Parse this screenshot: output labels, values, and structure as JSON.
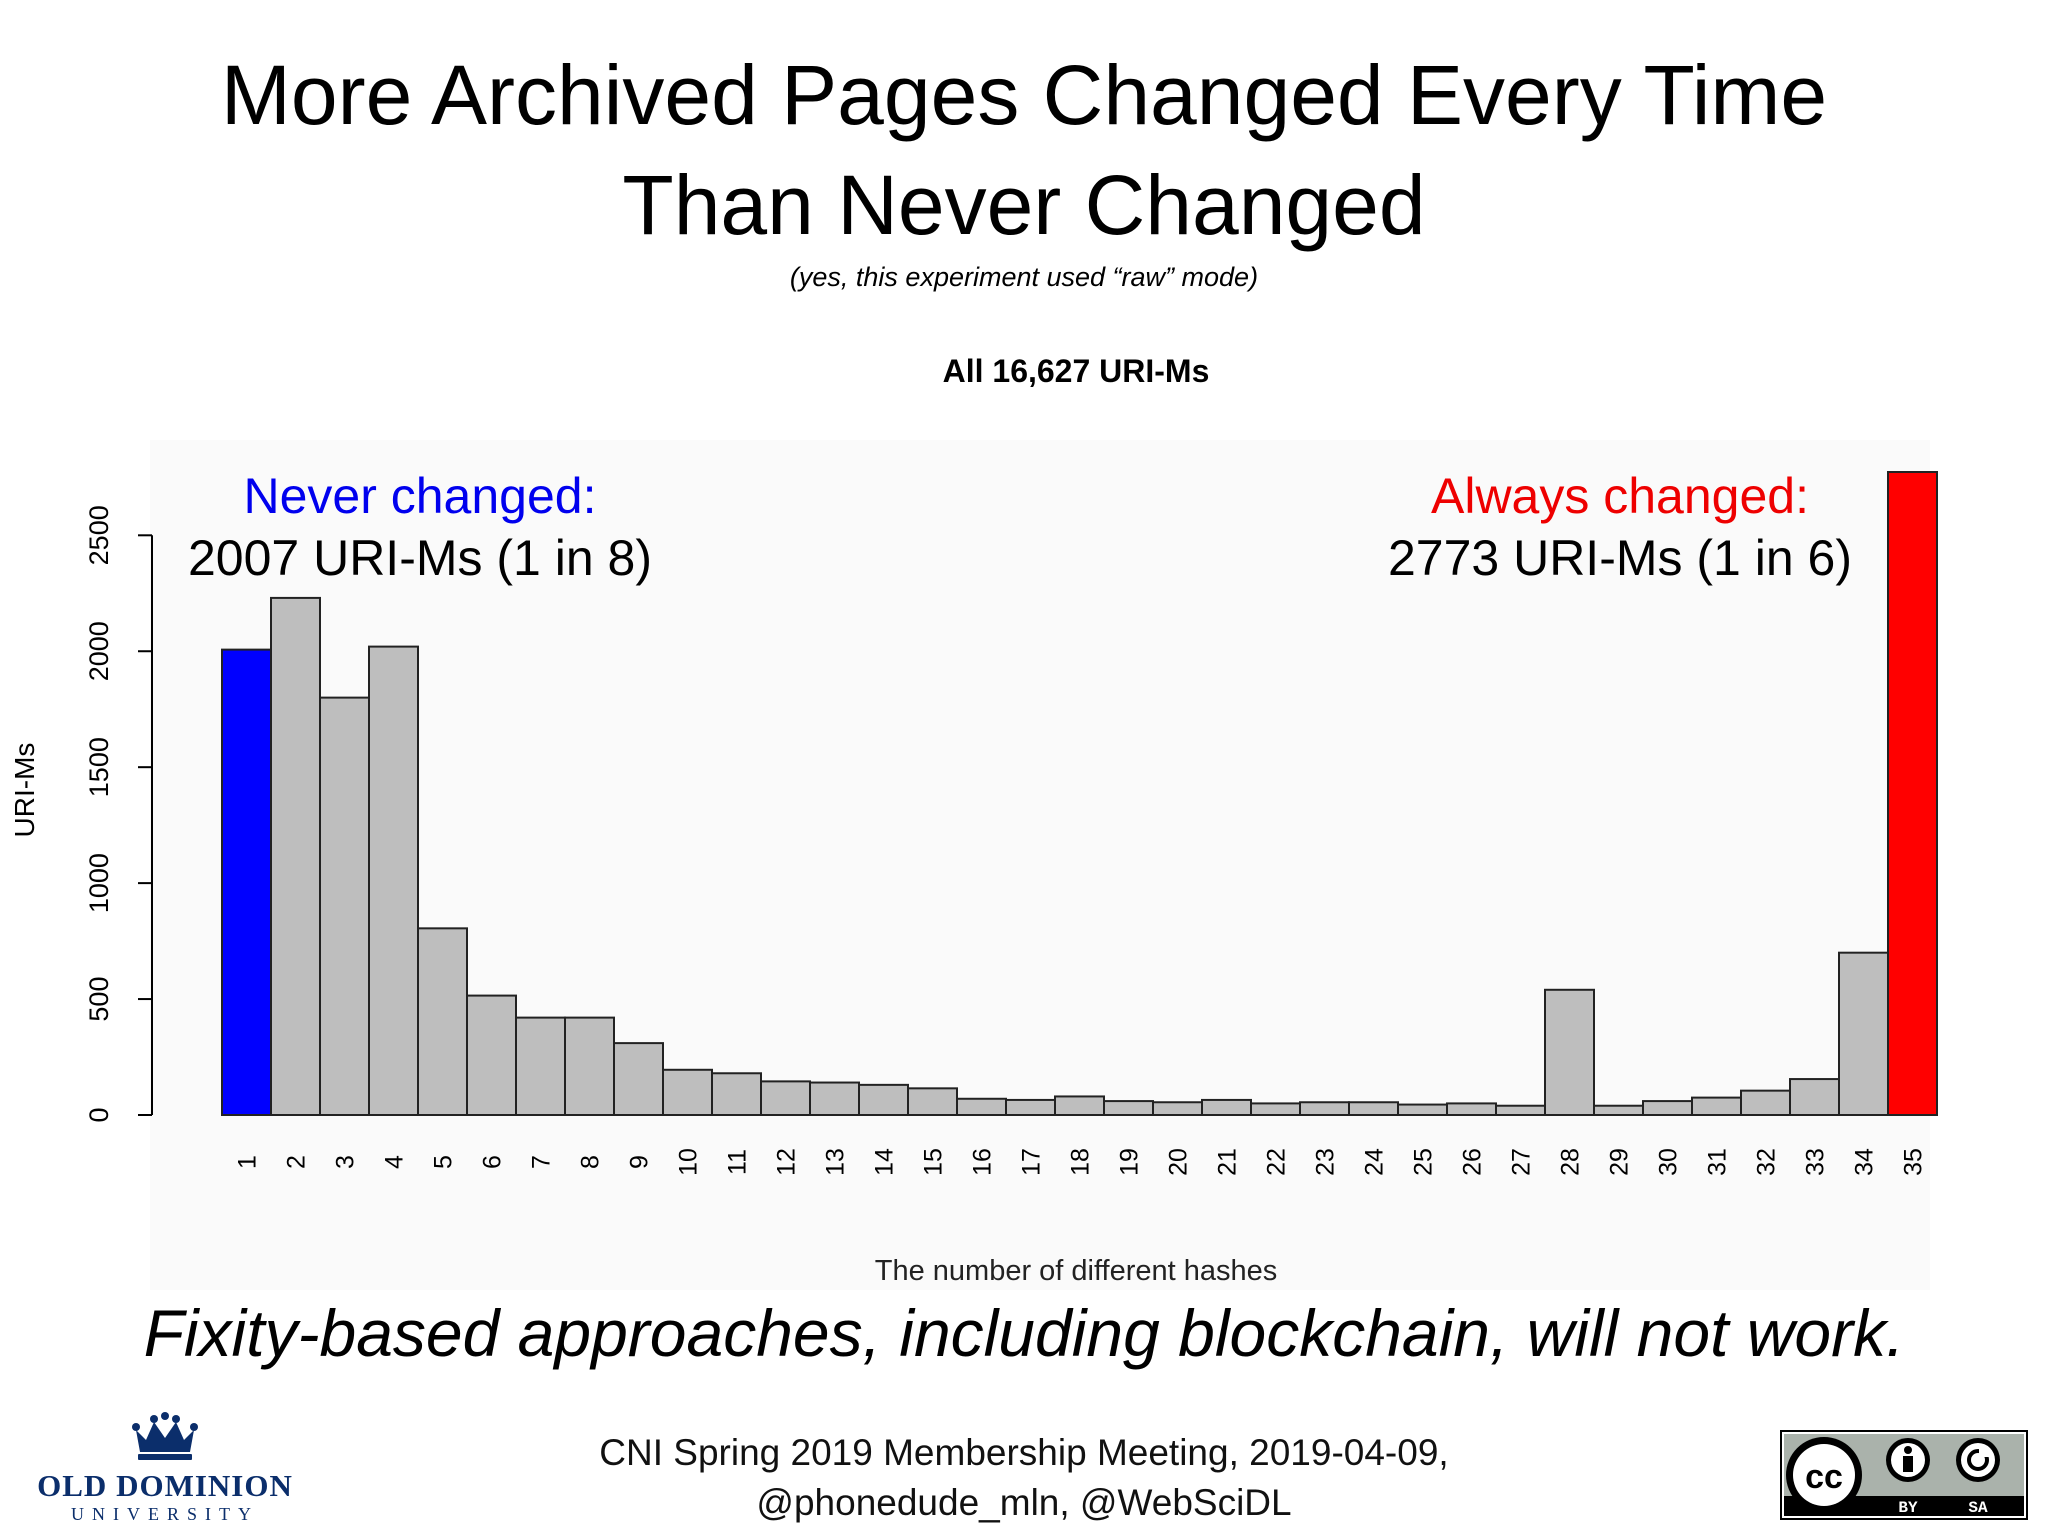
{
  "slide": {
    "title_line1": "More Archived Pages Changed Every Time",
    "title_line2": "Than Never Changed",
    "subtitle": "(yes, this experiment used “raw” mode)",
    "annotation_never_heading": "Never changed:",
    "annotation_never_value": "2007 URI-Ms (1 in 8)",
    "annotation_always_heading": "Always changed:",
    "annotation_always_value": "2773 URI-Ms (1 in 6)",
    "conclusion": "Fixity-based approaches, including blockchain, will not work.",
    "footer_line1": "CNI Spring 2019 Membership Meeting, 2019-04-09,",
    "footer_line2": "@phonedude_mln, @WebSciDL",
    "logo_left_name": "OLD DOMINION",
    "logo_left_sub": "UNIVERSITY",
    "logo_right_labels": [
      "BY",
      "SA"
    ]
  },
  "chart_data": {
    "type": "bar",
    "title": "All 16,627 URI-Ms",
    "xlabel": "The number of different hashes",
    "ylabel": "URI-Ms",
    "ylim": [
      0,
      2773
    ],
    "yticks": [
      0,
      500,
      1000,
      1500,
      2000,
      2500
    ],
    "categories": [
      "1",
      "2",
      "3",
      "4",
      "5",
      "6",
      "7",
      "8",
      "9",
      "10",
      "11",
      "12",
      "13",
      "14",
      "15",
      "16",
      "17",
      "18",
      "19",
      "20",
      "21",
      "22",
      "23",
      "24",
      "25",
      "26",
      "27",
      "28",
      "29",
      "30",
      "31",
      "32",
      "33",
      "34",
      "35"
    ],
    "values": [
      2007,
      2230,
      1800,
      2020,
      805,
      515,
      420,
      420,
      310,
      195,
      180,
      145,
      140,
      130,
      115,
      70,
      65,
      80,
      60,
      55,
      65,
      50,
      55,
      55,
      45,
      50,
      40,
      540,
      40,
      60,
      75,
      105,
      155,
      700,
      2773
    ],
    "bar_colors": {
      "default": "#bebebe",
      "first": "#0000ff",
      "last": "#ff0000"
    },
    "grid": false,
    "legend": "none"
  }
}
